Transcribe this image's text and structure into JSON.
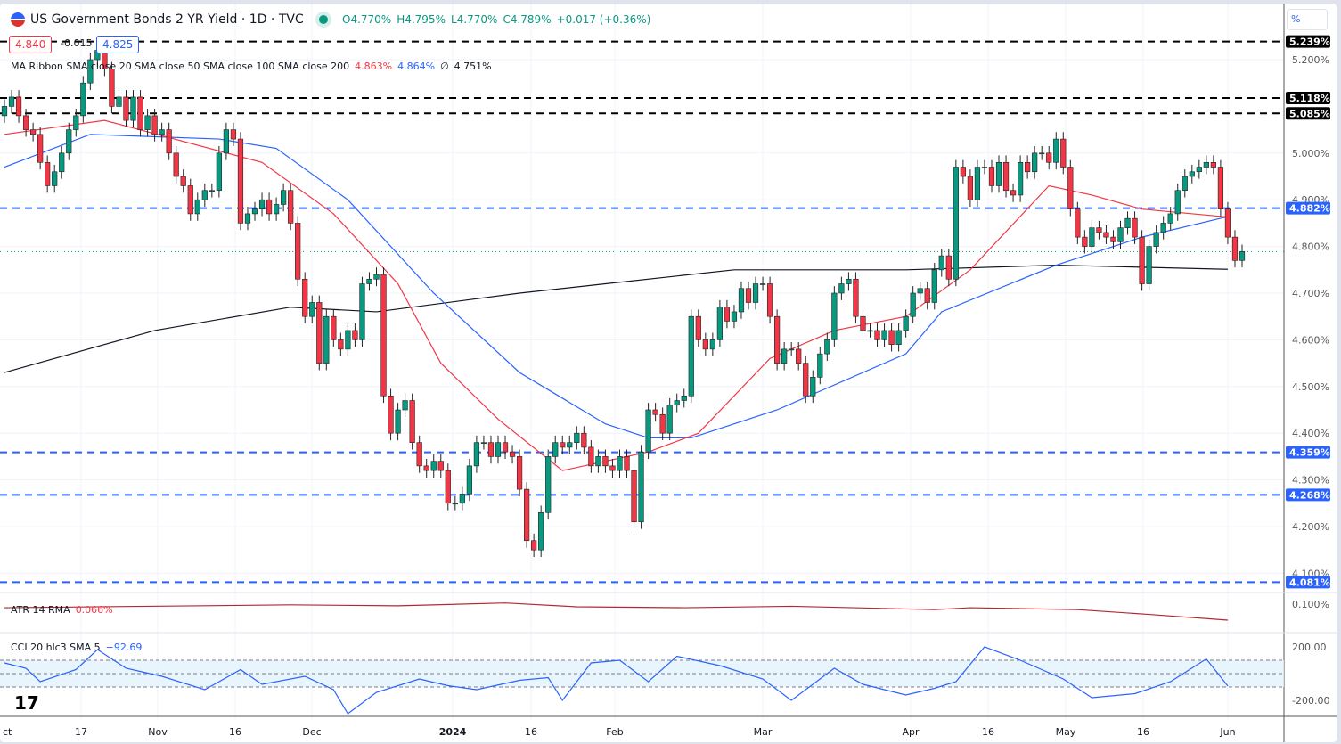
{
  "header": {
    "title": "US Government Bonds 2 YR Yield · 1D · TVC",
    "open": "O4.770%",
    "high": "H4.795%",
    "low": "L4.770%",
    "close": "C4.789%",
    "change": "+0.017 (+0.36%)",
    "sell": "4.840",
    "spread": "-0.015",
    "buy": "4.825"
  },
  "ma_legend": {
    "label": "MA Ribbon SMA close 20 SMA close 50 SMA close 100 SMA close 200",
    "v20": "4.863%",
    "v50": "4.864%",
    "v100": "∅",
    "v200": "4.751%"
  },
  "atr_legend": {
    "label": "ATR 14 RMA",
    "value": "0.066%"
  },
  "cci_legend": {
    "label": "CCI 20 hlc3 SMA 5",
    "value": "−92.69"
  },
  "scale_unit": "%",
  "colors": {
    "up": "#089981",
    "down": "#f23645",
    "ma20": "#f23645",
    "ma50": "#2962ff",
    "ma200": "#131722",
    "atr": "#b22833",
    "cci": "#2962ff"
  },
  "chart_data": {
    "type": "candlestick",
    "ylim": [
      4.05,
      5.25
    ],
    "y_ticks": [
      "5.200%",
      "5.000%",
      "4.900%",
      "4.800%",
      "4.700%",
      "4.600%",
      "4.500%",
      "4.400%",
      "4.300%",
      "4.200%",
      "4.100%"
    ],
    "y_tick_values": [
      5.2,
      5.0,
      4.9,
      4.8,
      4.7,
      4.6,
      4.5,
      4.4,
      4.3,
      4.2,
      4.1
    ],
    "x_labels": [
      "ct",
      "17",
      "Nov",
      "16",
      "Dec",
      "2024",
      "16",
      "Feb",
      "Mar",
      "Apr",
      "16",
      "May",
      "16",
      "Jun"
    ],
    "closes": [
      5.1,
      5.12,
      5.08,
      5.05,
      5.04,
      4.98,
      4.93,
      4.96,
      5.0,
      5.05,
      5.08,
      5.15,
      5.2,
      5.22,
      5.18,
      5.1,
      5.12,
      5.07,
      5.12,
      5.05,
      5.08,
      5.04,
      5.05,
      5.0,
      4.95,
      4.93,
      4.87,
      4.9,
      4.92,
      4.92,
      5.0,
      5.05,
      5.03,
      4.85,
      4.87,
      4.88,
      4.9,
      4.87,
      4.89,
      4.92,
      4.85,
      4.73,
      4.65,
      4.68,
      4.55,
      4.65,
      4.6,
      4.58,
      4.62,
      4.6,
      4.72,
      4.73,
      4.74,
      4.48,
      4.4,
      4.45,
      4.47,
      4.38,
      4.33,
      4.32,
      4.34,
      4.32,
      4.25,
      4.25,
      4.27,
      4.33,
      4.38,
      4.38,
      4.35,
      4.38,
      4.36,
      4.35,
      4.28,
      4.17,
      4.15,
      4.23,
      4.35,
      4.38,
      4.37,
      4.38,
      4.4,
      4.37,
      4.33,
      4.35,
      4.33,
      4.32,
      4.35,
      4.32,
      4.21,
      4.36,
      4.45,
      4.44,
      4.4,
      4.46,
      4.47,
      4.48,
      4.65,
      4.6,
      4.58,
      4.6,
      4.67,
      4.64,
      4.66,
      4.71,
      4.68,
      4.72,
      4.72,
      4.65,
      4.55,
      4.58,
      4.58,
      4.55,
      4.48,
      4.52,
      4.57,
      4.6,
      4.7,
      4.72,
      4.73,
      4.65,
      4.62,
      4.62,
      4.6,
      4.62,
      4.59,
      4.62,
      4.65,
      4.7,
      4.71,
      4.68,
      4.75,
      4.78,
      4.73,
      4.97,
      4.95,
      4.9,
      4.97,
      4.97,
      4.93,
      4.98,
      4.92,
      4.91,
      4.98,
      4.96,
      5.0,
      5.0,
      4.98,
      5.03,
      4.97,
      4.88,
      4.82,
      4.8,
      4.84,
      4.83,
      4.82,
      4.81,
      4.84,
      4.86,
      4.82,
      4.72,
      4.8,
      4.83,
      4.85,
      4.87,
      4.92,
      4.95,
      4.96,
      4.97,
      4.98,
      4.97,
      4.88,
      4.82,
      4.77,
      4.789
    ],
    "first_open": 5.08,
    "ma20": [
      [
        0,
        5.04
      ],
      [
        14,
        5.07
      ],
      [
        36,
        4.98
      ],
      [
        46,
        4.87
      ],
      [
        55,
        4.72
      ],
      [
        61,
        4.55
      ],
      [
        69,
        4.43
      ],
      [
        78,
        4.32
      ],
      [
        90,
        4.36
      ],
      [
        97,
        4.4
      ],
      [
        107,
        4.56
      ],
      [
        116,
        4.62
      ],
      [
        126,
        4.65
      ],
      [
        135,
        4.75
      ],
      [
        146,
        4.93
      ],
      [
        152,
        4.91
      ],
      [
        159,
        4.88
      ],
      [
        171,
        4.863
      ]
    ],
    "ma50": [
      [
        0,
        4.97
      ],
      [
        12,
        5.04
      ],
      [
        30,
        5.03
      ],
      [
        38,
        5.01
      ],
      [
        48,
        4.9
      ],
      [
        60,
        4.7
      ],
      [
        72,
        4.53
      ],
      [
        84,
        4.42
      ],
      [
        90,
        4.39
      ],
      [
        96,
        4.39
      ],
      [
        108,
        4.45
      ],
      [
        126,
        4.57
      ],
      [
        131,
        4.66
      ],
      [
        147,
        4.76
      ],
      [
        159,
        4.82
      ],
      [
        171,
        4.864
      ]
    ],
    "ma200": [
      [
        0,
        4.53
      ],
      [
        21,
        4.62
      ],
      [
        40,
        4.67
      ],
      [
        52,
        4.66
      ],
      [
        72,
        4.7
      ],
      [
        84,
        4.72
      ],
      [
        102,
        4.75
      ],
      [
        126,
        4.75
      ],
      [
        147,
        4.76
      ],
      [
        171,
        4.751
      ]
    ],
    "levels": [
      {
        "value": 5.239,
        "label": "5.239%",
        "color": "#000000"
      },
      {
        "value": 5.118,
        "label": "5.118%",
        "color": "#000000"
      },
      {
        "value": 5.085,
        "label": "5.085%",
        "color": "#000000"
      },
      {
        "value": 4.882,
        "label": "4.882%",
        "color": "#2962ff"
      },
      {
        "value": 4.359,
        "label": "4.359%",
        "color": "#2962ff"
      },
      {
        "value": 4.268,
        "label": "4.268%",
        "color": "#2962ff"
      },
      {
        "value": 4.081,
        "label": "4.081%",
        "color": "#2962ff"
      }
    ],
    "atr": {
      "ylim": [
        0.04,
        0.12
      ],
      "tick": "0.100%",
      "tick_value": 0.1,
      "values": [
        [
          0,
          0.092
        ],
        [
          20,
          0.095
        ],
        [
          40,
          0.098
        ],
        [
          55,
          0.096
        ],
        [
          70,
          0.102
        ],
        [
          80,
          0.094
        ],
        [
          95,
          0.092
        ],
        [
          110,
          0.095
        ],
        [
          130,
          0.088
        ],
        [
          135,
          0.092
        ],
        [
          150,
          0.088
        ],
        [
          160,
          0.078
        ],
        [
          171,
          0.066
        ]
      ]
    },
    "cci": {
      "ylim": [
        -300,
        300
      ],
      "ticks": [
        "200.00",
        "-200.00"
      ],
      "tick_values": [
        200,
        -200
      ],
      "band": [
        100,
        -100
      ],
      "values": [
        [
          0,
          80
        ],
        [
          3,
          40
        ],
        [
          5,
          -60
        ],
        [
          10,
          30
        ],
        [
          13,
          180
        ],
        [
          17,
          40
        ],
        [
          22,
          -20
        ],
        [
          28,
          -120
        ],
        [
          33,
          30
        ],
        [
          36,
          -80
        ],
        [
          42,
          -20
        ],
        [
          46,
          -120
        ],
        [
          48,
          -300
        ],
        [
          52,
          -140
        ],
        [
          58,
          -40
        ],
        [
          62,
          -90
        ],
        [
          66,
          -120
        ],
        [
          72,
          -50
        ],
        [
          76,
          -30
        ],
        [
          78,
          -200
        ],
        [
          82,
          80
        ],
        [
          86,
          100
        ],
        [
          90,
          -60
        ],
        [
          94,
          130
        ],
        [
          100,
          60
        ],
        [
          106,
          -40
        ],
        [
          110,
          -200
        ],
        [
          116,
          40
        ],
        [
          120,
          -80
        ],
        [
          126,
          -160
        ],
        [
          130,
          -110
        ],
        [
          133,
          -60
        ],
        [
          137,
          200
        ],
        [
          142,
          100
        ],
        [
          148,
          -40
        ],
        [
          152,
          -180
        ],
        [
          158,
          -150
        ],
        [
          163,
          -60
        ],
        [
          168,
          110
        ],
        [
          171,
          -92.69
        ]
      ]
    }
  }
}
